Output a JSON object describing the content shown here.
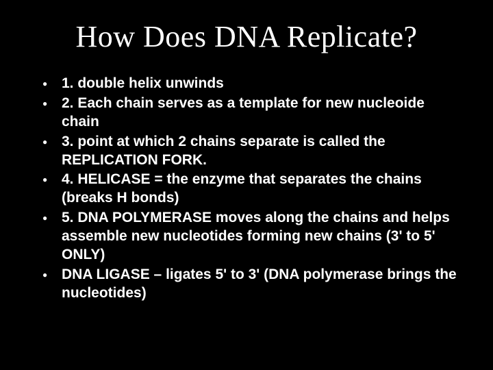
{
  "slide": {
    "title": "How Does DNA Replicate?",
    "bullets": [
      "1.  double helix unwinds",
      "2.  Each chain serves as a template for new nucleoide chain",
      "3.  point at which 2 chains separate is called the REPLICATION FORK.",
      "4.  HELICASE = the enzyme that separates the chains (breaks H bonds)",
      "5.  DNA POLYMERASE moves along the chains and helps assemble new nucleotides forming new chains (3' to 5' ONLY)",
      "DNA LIGASE – ligates 5' to 3' (DNA polymerase brings the nucleotides)"
    ],
    "background_color": "#000000",
    "title_color": "#ffffff",
    "text_color": "#ffffff",
    "title_fontsize": 44,
    "body_fontsize": 21,
    "bullet_marker": "●"
  }
}
